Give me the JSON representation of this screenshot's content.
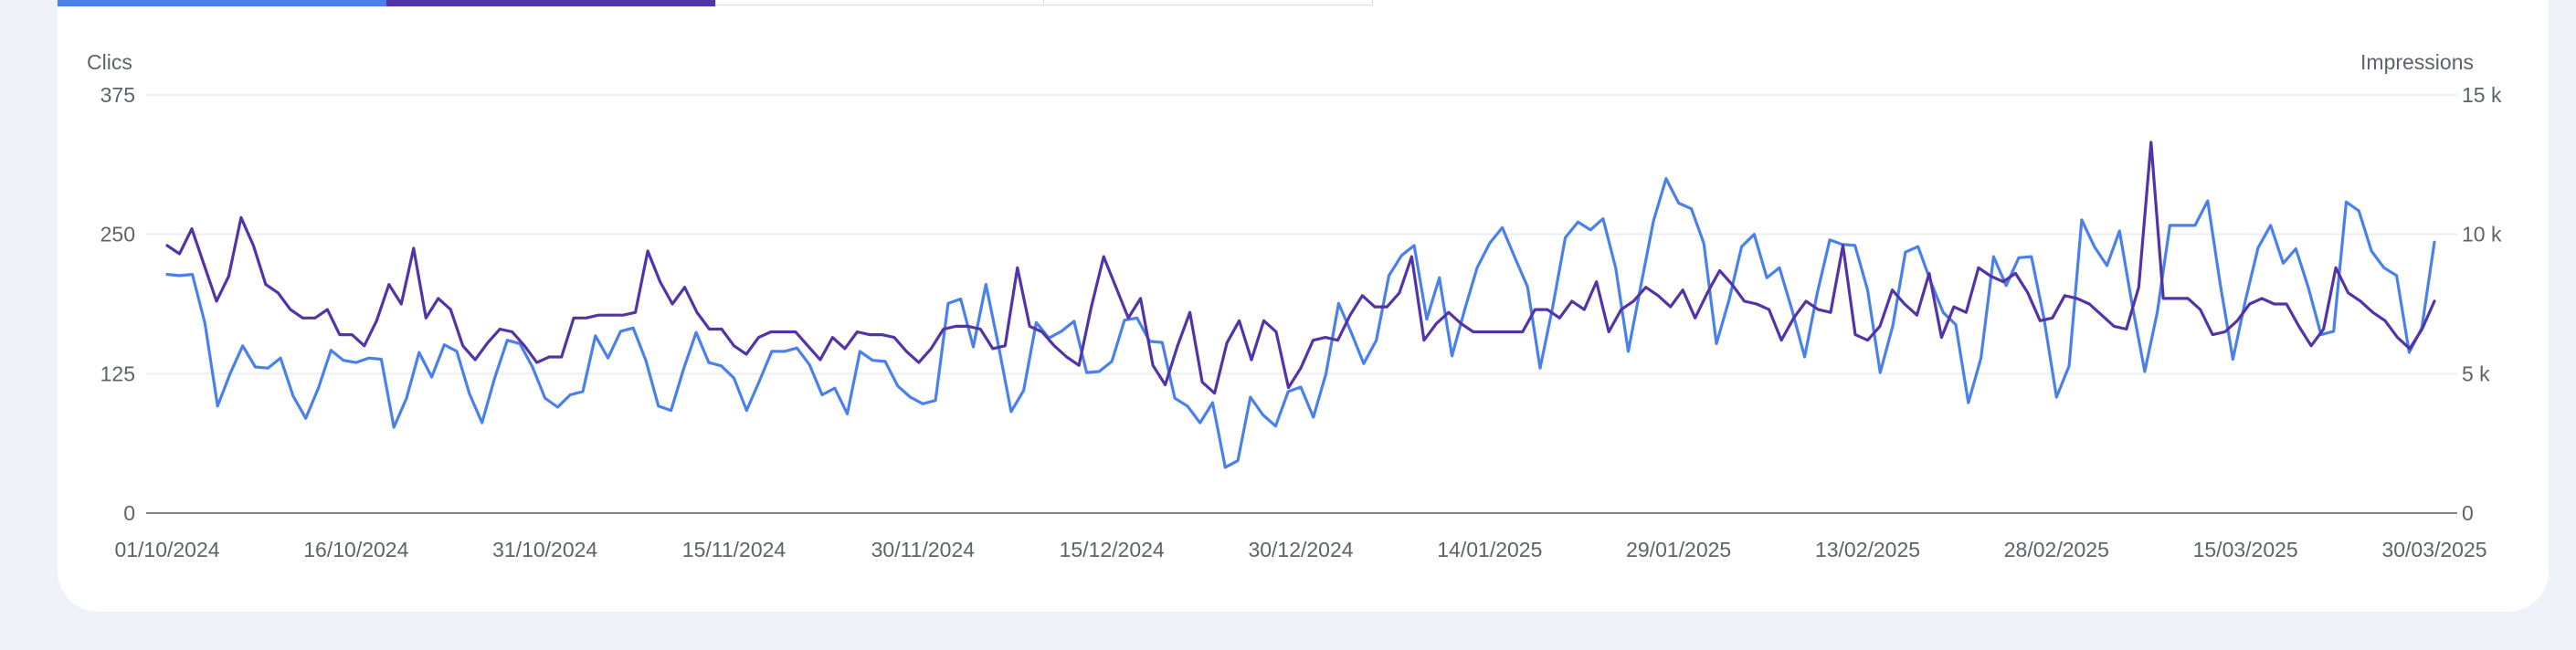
{
  "colors": {
    "clicks": "#4a80ec",
    "impressions": "#5333a8",
    "tab_clicks": "#4a80ec",
    "tab_impressions": "#5333a8"
  },
  "chart_data": {
    "type": "line",
    "left_axis_label": "Clics",
    "right_axis_label": "Impressions",
    "left_ylim": [
      0,
      375
    ],
    "right_ylim": [
      0,
      15000
    ],
    "left_ticks": [
      "0",
      "125",
      "250",
      "375"
    ],
    "right_ticks": [
      "0",
      "5 k",
      "10 k",
      "15 k"
    ],
    "x_ticks": [
      "01/10/2024",
      "16/10/2024",
      "31/10/2024",
      "15/11/2024",
      "30/11/2024",
      "15/12/2024",
      "30/12/2024",
      "14/01/2025",
      "29/01/2025",
      "13/02/2025",
      "28/02/2025",
      "15/03/2025",
      "30/03/2025"
    ],
    "grid": true,
    "series": [
      {
        "key": "clicks",
        "axis": "left",
        "values": [
          214,
          213,
          214,
          170,
          96,
          125,
          150,
          131,
          130,
          139,
          105,
          85,
          112,
          146,
          137,
          135,
          139,
          138,
          77,
          103,
          144,
          122,
          151,
          145,
          107,
          81,
          121,
          155,
          152,
          131,
          103,
          95,
          106,
          109,
          159,
          139,
          163,
          166,
          137,
          96,
          92,
          129,
          162,
          135,
          132,
          121,
          92,
          118,
          145,
          145,
          148,
          133,
          106,
          112,
          89,
          145,
          137,
          136,
          114,
          104,
          98,
          101,
          188,
          192,
          149,
          205,
          150,
          91,
          110,
          171,
          157,
          163,
          172,
          126,
          127,
          136,
          173,
          175,
          154,
          153,
          103,
          96,
          81,
          99,
          41,
          47,
          104,
          88,
          78,
          109,
          113,
          86,
          125,
          188,
          162,
          134,
          155,
          213,
          231,
          240,
          174,
          211,
          141,
          182,
          220,
          242,
          256,
          229,
          203,
          130,
          185,
          247,
          261,
          254,
          264,
          220,
          145,
          204,
          262,
          300,
          278,
          273,
          242,
          152,
          191,
          239,
          250,
          211,
          220,
          182,
          140,
          197,
          245,
          241,
          240,
          200,
          126,
          168,
          234,
          239,
          208,
          180,
          169,
          99,
          139,
          230,
          204,
          229,
          230,
          175,
          104,
          132,
          263,
          239,
          222,
          253,
          187,
          127,
          180,
          258,
          258,
          258,
          280,
          205,
          138,
          191,
          238,
          258,
          224,
          237,
          202,
          160,
          163,
          279,
          271,
          235,
          220,
          213,
          144,
          166,
          243
        ],
        "impressions": []
      },
      {
        "key": "impressions",
        "axis": "right",
        "values": [
          9600,
          9300,
          10200,
          8900,
          7600,
          8500,
          10600,
          9600,
          8200,
          7900,
          7300,
          7000,
          7000,
          7300,
          6400,
          6400,
          6000,
          6900,
          8200,
          7500,
          9500,
          7000,
          7700,
          7300,
          6000,
          5500,
          6100,
          6600,
          6500,
          6000,
          5400,
          5600,
          5600,
          7000,
          7000,
          7100,
          7100,
          7100,
          7200,
          9400,
          8300,
          7500,
          8100,
          7200,
          6600,
          6600,
          6000,
          5700,
          6300,
          6500,
          6500,
          6500,
          6000,
          5500,
          6300,
          5900,
          6500,
          6400,
          6400,
          6300,
          5800,
          5400,
          5900,
          6600,
          6700,
          6700,
          6600,
          5900,
          6000,
          8800,
          6700,
          6500,
          6000,
          5600,
          5300,
          7400,
          9200,
          8100,
          7000,
          7700,
          5300,
          4600,
          6000,
          7200,
          4700,
          4300,
          6100,
          6900,
          5500,
          6900,
          6500,
          4500,
          5200,
          6200,
          6300,
          6200,
          7100,
          7800,
          7400,
          7400,
          7900,
          9200,
          6200,
          6800,
          7200,
          6800,
          6500,
          6500,
          6500,
          6500,
          6500,
          7300,
          7300,
          7000,
          7600,
          7300,
          8300,
          6500,
          7300,
          7600,
          8100,
          7800,
          7400,
          8000,
          7000,
          7900,
          8700,
          8200,
          7600,
          7500,
          7300,
          6200,
          7000,
          7600,
          7300,
          7200,
          9600,
          6400,
          6200,
          6700,
          8000,
          7500,
          7100,
          8600,
          6300,
          7400,
          7200,
          8800,
          8500,
          8300,
          8600,
          7900,
          6900,
          7000,
          7800,
          7700,
          7500,
          7100,
          6700,
          6600,
          8100,
          13300,
          7700,
          7700,
          7700,
          7300,
          6400,
          6500,
          6900,
          7500,
          7700,
          7500,
          7500,
          6700,
          6000,
          6600,
          8800,
          7900,
          7600,
          7200,
          6900,
          6300,
          5900,
          6600,
          7600
        ],
        "impressions": []
      }
    ]
  }
}
